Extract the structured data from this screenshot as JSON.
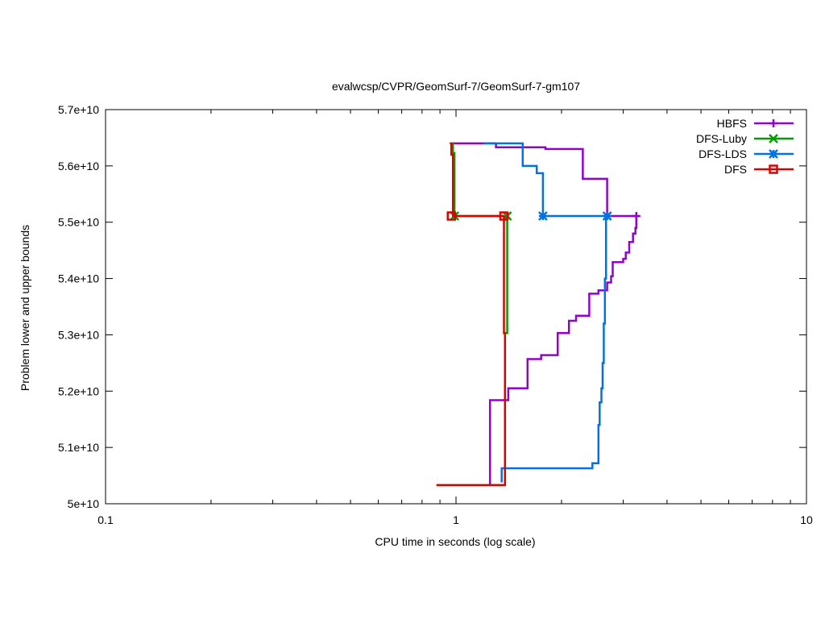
{
  "chart_data": {
    "type": "line",
    "title": "evalwcsp/CVPR/GeomSurf-7/GeomSurf-7-gm107",
    "xlabel": "CPU time in seconds (log scale)",
    "ylabel": "Problem lower and upper bounds",
    "xscale": "log",
    "xlim": [
      0.1,
      10
    ],
    "ylim": [
      50000000000,
      57000000000
    ],
    "x_ticks": [
      {
        "value": 0.1,
        "label": "0.1"
      },
      {
        "value": 1,
        "label": "1"
      },
      {
        "value": 10,
        "label": "10"
      }
    ],
    "y_ticks": [
      {
        "value": 50000000000,
        "label": "5e+10"
      },
      {
        "value": 51000000000,
        "label": "5.1e+10"
      },
      {
        "value": 52000000000,
        "label": "5.2e+10"
      },
      {
        "value": 53000000000,
        "label": "5.3e+10"
      },
      {
        "value": 54000000000,
        "label": "5.4e+10"
      },
      {
        "value": 55000000000,
        "label": "5.5e+10"
      },
      {
        "value": 56000000000,
        "label": "5.6e+10"
      },
      {
        "value": 57000000000,
        "label": "5.7e+10"
      }
    ],
    "grid": false,
    "legend_position": "top-right",
    "series": [
      {
        "name": "HBFS",
        "color": "#9400d3",
        "marker": "plus",
        "upper": [
          [
            0.97,
            56400000000
          ],
          [
            1.3,
            56400000000
          ],
          [
            1.3,
            56330000000
          ],
          [
            1.8,
            56330000000
          ],
          [
            1.8,
            56300000000
          ],
          [
            2.3,
            56300000000
          ],
          [
            2.3,
            55770000000
          ],
          [
            2.7,
            55770000000
          ],
          [
            2.7,
            55110000000
          ],
          [
            3.3,
            55110000000
          ]
        ],
        "lower": [
          [
            1.25,
            50330000000
          ],
          [
            1.25,
            51840000000
          ],
          [
            1.41,
            51840000000
          ],
          [
            1.41,
            52050000000
          ],
          [
            1.6,
            52050000000
          ],
          [
            1.6,
            52570000000
          ],
          [
            1.75,
            52570000000
          ],
          [
            1.75,
            52640000000
          ],
          [
            1.95,
            52640000000
          ],
          [
            1.95,
            53030000000
          ],
          [
            2.1,
            53030000000
          ],
          [
            2.1,
            53250000000
          ],
          [
            2.2,
            53250000000
          ],
          [
            2.2,
            53340000000
          ],
          [
            2.4,
            53340000000
          ],
          [
            2.4,
            53730000000
          ],
          [
            2.55,
            53730000000
          ],
          [
            2.55,
            53790000000
          ],
          [
            2.7,
            53790000000
          ],
          [
            2.7,
            53930000000
          ],
          [
            2.77,
            53930000000
          ],
          [
            2.77,
            54040000000
          ],
          [
            2.8,
            54040000000
          ],
          [
            2.8,
            54290000000
          ],
          [
            3.0,
            54290000000
          ],
          [
            3.0,
            54350000000
          ],
          [
            3.05,
            54350000000
          ],
          [
            3.05,
            54460000000
          ],
          [
            3.12,
            54460000000
          ],
          [
            3.12,
            54650000000
          ],
          [
            3.2,
            54650000000
          ],
          [
            3.2,
            54800000000
          ],
          [
            3.25,
            54800000000
          ],
          [
            3.25,
            54900000000
          ],
          [
            3.27,
            54900000000
          ],
          [
            3.27,
            55110000000
          ]
        ],
        "marker_points": [
          [
            3.27,
            55110000000
          ]
        ]
      },
      {
        "name": "DFS-Luby",
        "color": "#009e00",
        "marker": "cross",
        "upper": [
          [
            0.97,
            56400000000
          ],
          [
            0.98,
            56400000000
          ],
          [
            0.98,
            56230000000
          ],
          [
            0.99,
            56230000000
          ],
          [
            0.99,
            55110000000
          ],
          [
            1.4,
            55110000000
          ]
        ],
        "lower": [
          [
            0.88,
            50330000000
          ],
          [
            1.38,
            50330000000
          ],
          [
            1.38,
            53030000000
          ],
          [
            1.4,
            53030000000
          ],
          [
            1.4,
            55110000000
          ]
        ],
        "marker_points": [
          [
            0.99,
            55110000000
          ],
          [
            1.4,
            55110000000
          ]
        ]
      },
      {
        "name": "DFS-LDS",
        "color": "#0072e6",
        "marker": "star",
        "upper": [
          [
            1.2,
            56400000000
          ],
          [
            1.55,
            56400000000
          ],
          [
            1.55,
            56000000000
          ],
          [
            1.7,
            56000000000
          ],
          [
            1.7,
            55870000000
          ],
          [
            1.77,
            55870000000
          ],
          [
            1.77,
            55110000000
          ],
          [
            2.7,
            55110000000
          ]
        ],
        "lower": [
          [
            1.35,
            50380000000
          ],
          [
            1.35,
            50630000000
          ],
          [
            2.45,
            50630000000
          ],
          [
            2.45,
            50720000000
          ],
          [
            2.55,
            50720000000
          ],
          [
            2.55,
            51400000000
          ],
          [
            2.57,
            51400000000
          ],
          [
            2.57,
            51800000000
          ],
          [
            2.6,
            51800000000
          ],
          [
            2.6,
            52050000000
          ],
          [
            2.62,
            52050000000
          ],
          [
            2.62,
            52500000000
          ],
          [
            2.64,
            52500000000
          ],
          [
            2.64,
            53200000000
          ],
          [
            2.66,
            53200000000
          ],
          [
            2.66,
            54000000000
          ],
          [
            2.68,
            54000000000
          ],
          [
            2.68,
            55110000000
          ]
        ],
        "marker_points": [
          [
            1.77,
            55110000000
          ],
          [
            2.7,
            55110000000
          ]
        ]
      },
      {
        "name": "DFS",
        "color": "#e00000",
        "marker": "square",
        "upper": [
          [
            0.96,
            56400000000
          ],
          [
            0.97,
            56400000000
          ],
          [
            0.97,
            56200000000
          ],
          [
            0.98,
            56200000000
          ],
          [
            0.98,
            55110000000
          ],
          [
            1.37,
            55110000000
          ]
        ],
        "lower": [
          [
            0.88,
            50330000000
          ],
          [
            1.38,
            50330000000
          ],
          [
            1.38,
            53030000000
          ],
          [
            1.37,
            53030000000
          ],
          [
            1.37,
            55110000000
          ]
        ],
        "marker_points": [
          [
            0.97,
            55110000000
          ],
          [
            1.37,
            55110000000
          ]
        ]
      }
    ]
  }
}
